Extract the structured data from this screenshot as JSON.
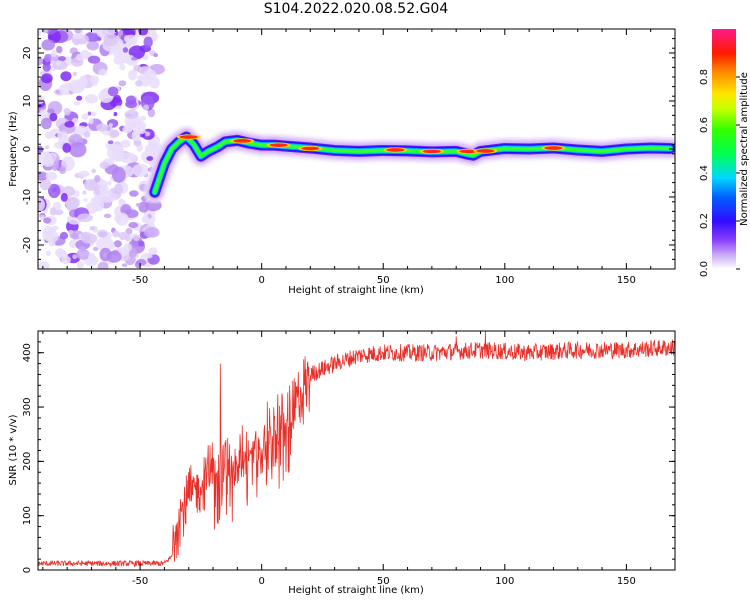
{
  "title": "S104.2022.020.08.52.G04",
  "chart_data": [
    {
      "type": "heatmap",
      "xlabel": "Height of straight line (km)",
      "ylabel": "Frequency (Hz)",
      "xlim": [
        -92,
        170
      ],
      "ylim": [
        -25,
        25
      ],
      "x_ticks": [
        -50,
        0,
        50,
        100,
        150
      ],
      "y_ticks": [
        -20,
        -10,
        0,
        10,
        20
      ],
      "colorbar": {
        "label": "Normalized spectral amplitude",
        "range": [
          0,
          1
        ],
        "ticks": [
          "0.0",
          "0.2",
          "0.4",
          "0.6",
          "0.8"
        ],
        "colormap": "gist_ncar-like (white → purple → blue → cyan → green → yellow → orange → red → pink)"
      },
      "noise_region_x": [
        -92,
        -43
      ],
      "ridge": {
        "x": [
          -44,
          -42,
          -40,
          -37,
          -34,
          -31,
          -28,
          -25,
          -22,
          -18,
          -15,
          -10,
          -5,
          0,
          5,
          10,
          20,
          30,
          40,
          50,
          60,
          70,
          80,
          84,
          87,
          90,
          95,
          100,
          110,
          120,
          130,
          140,
          150,
          160,
          168
        ],
        "y": [
          -9,
          -6,
          -3,
          0,
          1.5,
          2.5,
          1.0,
          -1.5,
          -0.5,
          0.5,
          1.5,
          1.8,
          1.2,
          0.8,
          0.8,
          0.6,
          0.2,
          -0.3,
          -0.5,
          -0.3,
          -0.4,
          -0.6,
          -0.5,
          -1.0,
          -1.3,
          -0.5,
          -0.2,
          0.1,
          0.0,
          0.2,
          -0.2,
          -0.5,
          0.0,
          0.2,
          0.1
        ]
      },
      "peaks_red": [
        [
          -30,
          2.5
        ],
        [
          -8,
          1.7
        ],
        [
          7,
          0.8
        ],
        [
          20,
          0.1
        ],
        [
          55,
          -0.2
        ],
        [
          70,
          -0.5
        ],
        [
          85,
          -0.5
        ],
        [
          92,
          -0.4
        ],
        [
          120,
          0.2
        ]
      ],
      "grid": false
    },
    {
      "type": "line",
      "xlabel": "Height of straight line (km)",
      "ylabel": "SNR (10 * v/v)",
      "xlim": [
        -92,
        170
      ],
      "ylim": [
        0,
        440
      ],
      "x_ticks": [
        -50,
        0,
        50,
        100,
        150
      ],
      "y_ticks": [
        0,
        100,
        200,
        300,
        400
      ],
      "color": "#e8302a",
      "grid": false,
      "envelope": {
        "x": [
          -92,
          -40,
          -37,
          -35,
          -30,
          -25,
          -20,
          -15,
          -10,
          -5,
          0,
          5,
          10,
          15,
          20,
          30,
          40,
          50,
          70,
          90,
          110,
          130,
          150,
          170
        ],
        "y": [
          12,
          12,
          25,
          95,
          130,
          160,
          185,
          205,
          200,
          215,
          230,
          260,
          280,
          320,
          360,
          380,
          395,
          400,
          400,
          405,
          400,
          405,
          405,
          410
        ]
      },
      "notable_points": [
        [
          -17,
          380
        ],
        [
          92,
          440
        ],
        [
          80,
          430
        ]
      ]
    }
  ]
}
